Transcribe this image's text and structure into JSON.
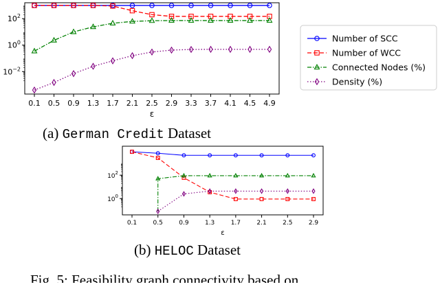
{
  "figures": [
    {
      "caption": {
        "label": "(a)",
        "dataset_code": "German Credit",
        "suffix": "Dataset"
      },
      "chart_data": {
        "type": "line",
        "xlabel": "ε",
        "categories": [
          "0.1",
          "0.5",
          "0.9",
          "1.3",
          "1.7",
          "2.1",
          "2.5",
          "2.9",
          "3.3",
          "3.7",
          "4.1",
          "4.5",
          "4.9"
        ],
        "yscale": "log",
        "ylim": [
          0.0002,
          1600
        ],
        "yticks": [
          {
            "value": 0.01,
            "base": "10",
            "exp": "−2"
          },
          {
            "value": 1,
            "base": "10",
            "exp": "0"
          },
          {
            "value": 100,
            "base": "10",
            "exp": "2"
          }
        ],
        "legend": "right",
        "series": [
          {
            "name": "Number of SCC",
            "color": "#0000ff",
            "dash": "",
            "marker": "circle",
            "values": [
              1000,
              1000,
              1000,
              1000,
              1000,
              1000,
              1000,
              1000,
              1000,
              1000,
              1000,
              1000,
              1000
            ]
          },
          {
            "name": "Number of WCC",
            "color": "#ff0000",
            "dash": "6,3",
            "marker": "square",
            "values": [
              1000,
              1000,
              1000,
              1000,
              900,
              400,
              200,
              150,
              150,
              150,
              150,
              150,
              150
            ]
          },
          {
            "name": "Connected Nodes (%)",
            "color": "#008000",
            "dash": "6,2,1.5,2",
            "marker": "triangle",
            "values": [
              0.35,
              2.3,
              10,
              24,
              45,
              62,
              70,
              72,
              72,
              72,
              72,
              72,
              72
            ]
          },
          {
            "name": "Density (%)",
            "color": "#800080",
            "dash": "1.5,2.5",
            "marker": "diamond",
            "values": [
              0.0004,
              0.0015,
              0.007,
              0.025,
              0.065,
              0.16,
              0.3,
              0.42,
              0.47,
              0.48,
              0.48,
              0.48,
              0.48
            ]
          }
        ]
      }
    },
    {
      "caption": {
        "label": "(b)",
        "dataset_code": "HELOC",
        "suffix": "Dataset"
      },
      "chart_data": {
        "type": "line",
        "xlabel": "ε",
        "categories": [
          "0.1",
          "0.5",
          "0.9",
          "1.3",
          "1.7",
          "2.1",
          "2.5",
          "2.9"
        ],
        "yscale": "log",
        "ylim": [
          0.04,
          30000
        ],
        "yticks": [
          {
            "value": 1,
            "base": "10",
            "exp": "0"
          },
          {
            "value": 100,
            "base": "10",
            "exp": "2"
          }
        ],
        "series": [
          {
            "name": "Number of SCC",
            "color": "#0000ff",
            "dash": "",
            "marker": "circle",
            "values": [
              10000,
              7500,
              5000,
              5000,
              5000,
              5000,
              5000,
              5000
            ]
          },
          {
            "name": "Number of WCC",
            "color": "#ff0000",
            "dash": "6,3",
            "marker": "square",
            "values": [
              10000,
              3000,
              60,
              3.5,
              0.9,
              0.9,
              0.9,
              0.9
            ]
          },
          {
            "name": "Connected Nodes (%)",
            "color": "#008000",
            "dash": "6,2,1.5,2",
            "marker": "triangle",
            "values": [
              null,
              50,
              90,
              90,
              90,
              90,
              90,
              90
            ],
            "drop_from": 0.08
          },
          {
            "name": "Density (%)",
            "color": "#800080",
            "dash": "1.5,2.5",
            "marker": "diamond",
            "values": [
              null,
              0.08,
              2.5,
              4.3,
              4.3,
              4.3,
              4.3,
              4.3
            ]
          }
        ]
      }
    }
  ],
  "fig_caption_partial": "Fig. 5: Feasibility graph connectivity based on"
}
